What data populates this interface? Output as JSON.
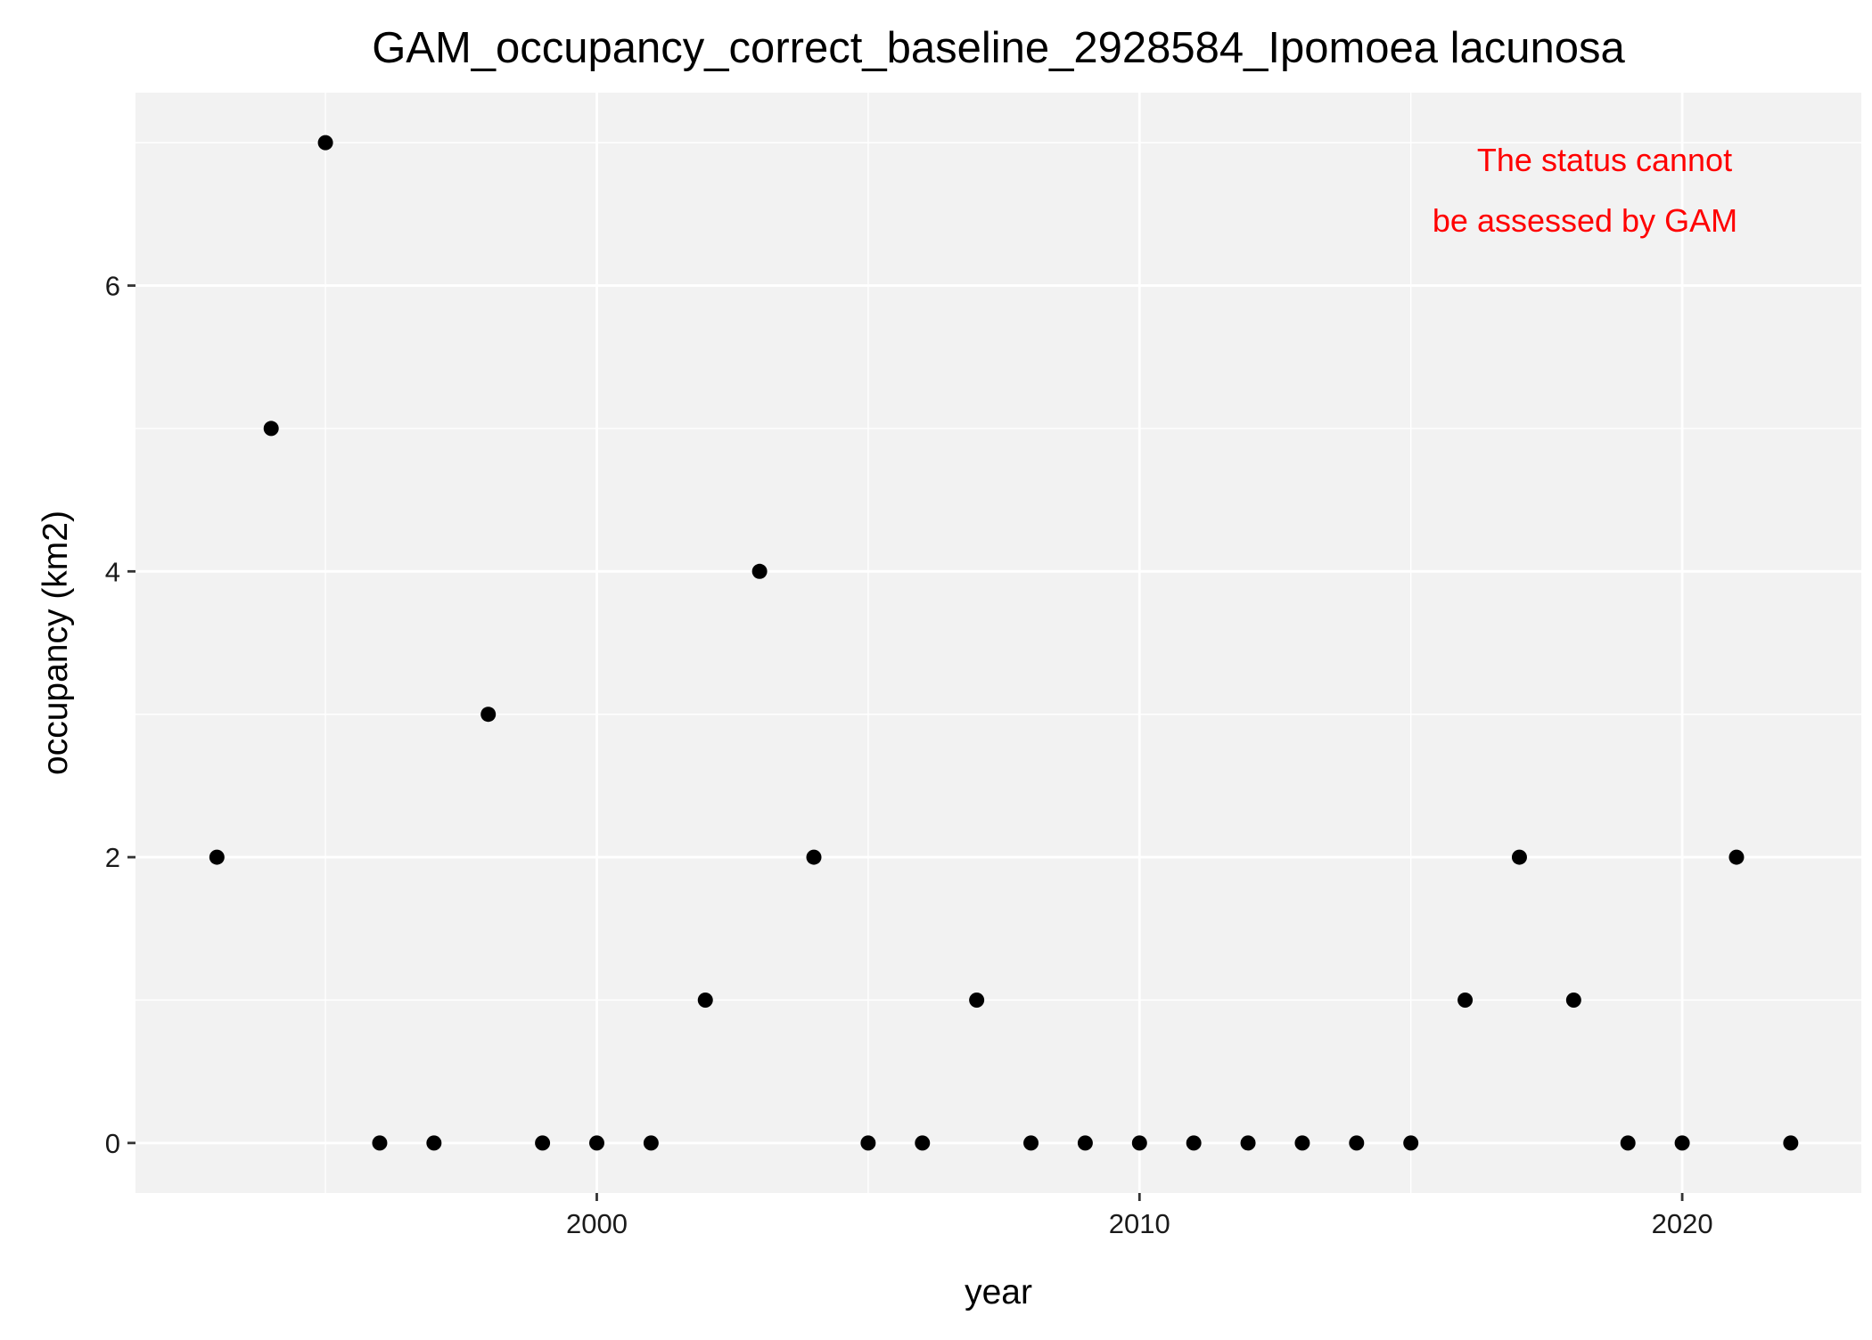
{
  "chart_data": {
    "type": "scatter",
    "title": "GAM_occupancy_correct_baseline_2928584_Ipomoea lacunosa",
    "xlabel": "year",
    "ylabel": "occupancy (km2)",
    "xlim": [
      1991.5,
      2023.3
    ],
    "ylim": [
      -0.35,
      7.35
    ],
    "x_ticks": [
      2000,
      2010,
      2020
    ],
    "y_ticks": [
      0,
      2,
      4,
      6
    ],
    "grid": true,
    "series": [
      {
        "points": [
          {
            "x": 1993,
            "y": 2
          },
          {
            "x": 1994,
            "y": 5
          },
          {
            "x": 1995,
            "y": 7
          },
          {
            "x": 1996,
            "y": 0
          },
          {
            "x": 1997,
            "y": 0
          },
          {
            "x": 1998,
            "y": 3
          },
          {
            "x": 1999,
            "y": 0
          },
          {
            "x": 2000,
            "y": 0
          },
          {
            "x": 2001,
            "y": 0
          },
          {
            "x": 2002,
            "y": 1
          },
          {
            "x": 2003,
            "y": 4
          },
          {
            "x": 2004,
            "y": 2
          },
          {
            "x": 2005,
            "y": 0
          },
          {
            "x": 2006,
            "y": 0
          },
          {
            "x": 2007,
            "y": 1
          },
          {
            "x": 2008,
            "y": 0
          },
          {
            "x": 2009,
            "y": 0
          },
          {
            "x": 2010,
            "y": 0
          },
          {
            "x": 2011,
            "y": 0
          },
          {
            "x": 2012,
            "y": 0
          },
          {
            "x": 2013,
            "y": 0
          },
          {
            "x": 2014,
            "y": 0
          },
          {
            "x": 2015,
            "y": 0
          },
          {
            "x": 2016,
            "y": 1
          },
          {
            "x": 2017,
            "y": 2
          },
          {
            "x": 2018,
            "y": 1
          },
          {
            "x": 2019,
            "y": 0
          },
          {
            "x": 2020,
            "y": 0
          },
          {
            "x": 2021,
            "y": 2
          },
          {
            "x": 2022,
            "y": 0
          }
        ]
      }
    ],
    "annotation": {
      "lines": [
        "The status cannot",
        "be assessed by GAM"
      ],
      "color": "#ff0000"
    },
    "colors": {
      "panel_background": "#f2f2f2",
      "grid_major": "#ffffff",
      "point": "#000000",
      "text": "#000000",
      "tick_text": "#1a1a1a"
    }
  }
}
